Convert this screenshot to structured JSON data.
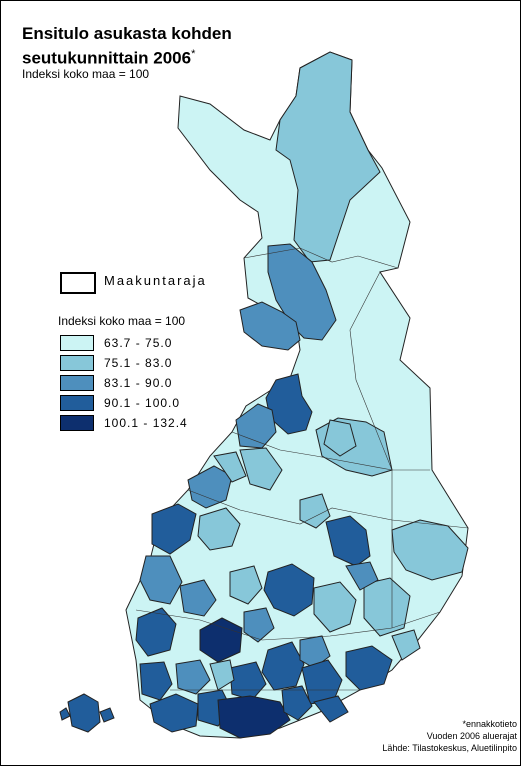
{
  "title_line1": "Ensitulo asukasta kohden",
  "title_line2": "seutukunnittain 2006",
  "title_mark": "*",
  "subtitle": "Indeksi koko maa = 100",
  "legend": {
    "border_label": "Maakuntaraja",
    "title": "Indeksi koko maa = 100",
    "classes": [
      {
        "label": "63.7 - 75.0",
        "color": "#ccf4f4"
      },
      {
        "label": "75.1 - 83.0",
        "color": "#87c7d9"
      },
      {
        "label": "83.1 - 90.0",
        "color": "#4e8fbd"
      },
      {
        "label": "90.1 - 100.0",
        "color": "#215d9b"
      },
      {
        "label": "100.1 - 132.4",
        "color": "#0d2f6e"
      }
    ]
  },
  "footnote": {
    "line1": "*ennakkotieto",
    "line2": "Vuoden 2006 aluerajat",
    "line3": "Lähde: Tilastokeskus, Aluetilinpito"
  }
}
